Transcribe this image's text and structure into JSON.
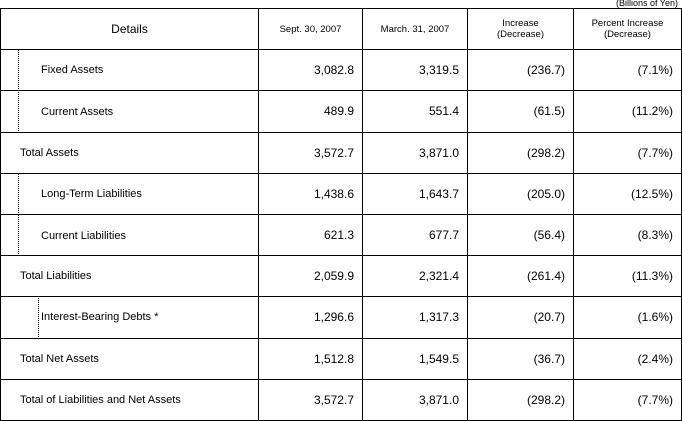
{
  "unit_note": "(Billions of Yen)",
  "table": {
    "header": [
      "Details",
      "Sept. 30, 2007",
      "March. 31, 2007",
      "Increase\n(Decrease)",
      "Percent Increase\n(Decrease)"
    ],
    "rows": [
      [
        "Fixed Assets",
        "3,082.8",
        "3,319.5",
        "(236.7)",
        "(7.1%)"
      ],
      [
        "Current Assets",
        "489.9",
        "551.4",
        "(61.5)",
        "(11.2%)"
      ],
      [
        "Total Assets",
        "3,572.7",
        "3,871.0",
        "(298.2)",
        "(7.7%)"
      ],
      [
        "Long-Term Liabilities",
        "1,438.6",
        "1,643.7",
        "(205.0)",
        "(12.5%)"
      ],
      [
        "Current Liabilities",
        "621.3",
        "677.7",
        "(56.4)",
        "(8.3%)"
      ],
      [
        "Total Liabilities",
        "2,059.9",
        "2,321.4",
        "(261.4)",
        "(11.3%)"
      ],
      [
        "Interest-Bearing Debts *",
        "1,296.6",
        "1,317.3",
        "(20.7)",
        "(1.6%)"
      ],
      [
        "Total Net Assets",
        "1,512.8",
        "1,549.5",
        "(36.7)",
        "(2.4%)"
      ],
      [
        "Total of Liabilities and Net Assets",
        "3,572.7",
        "3,871.0",
        "(298.2)",
        "(7.7%)"
      ]
    ]
  }
}
